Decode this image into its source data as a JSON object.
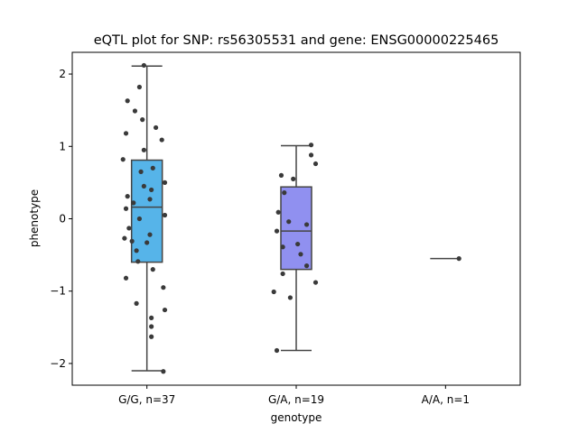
{
  "chart_data": {
    "type": "box",
    "title": "eQTL plot for SNP: rs56305531 and gene: ENSG00000225465",
    "xlabel": "genotype",
    "ylabel": "phenotype",
    "ylim": [
      -2.3,
      2.3
    ],
    "yticks": [
      -2,
      -1,
      0,
      1,
      2
    ],
    "ytick_labels": [
      "−2",
      "−1",
      "0",
      "1",
      "2"
    ],
    "grid": false,
    "legend": "none",
    "categories": [
      "G/G, n=37",
      "G/A, n=19",
      "A/A, n=1"
    ],
    "boxes": [
      {
        "category": "G/G, n=37",
        "color": "#56b4e9",
        "q1": -0.6,
        "median": 0.16,
        "q3": 0.81,
        "whisker_low": -2.1,
        "whisker_high": 2.11,
        "points": [
          {
            "dx": -0.02,
            "y": 2.12
          },
          {
            "dx": -0.05,
            "y": 1.82
          },
          {
            "dx": -0.13,
            "y": 1.63
          },
          {
            "dx": -0.08,
            "y": 1.49
          },
          {
            "dx": -0.03,
            "y": 1.37
          },
          {
            "dx": 0.06,
            "y": 1.26
          },
          {
            "dx": -0.14,
            "y": 1.18
          },
          {
            "dx": 0.1,
            "y": 1.09
          },
          {
            "dx": -0.02,
            "y": 0.95
          },
          {
            "dx": -0.16,
            "y": 0.82
          },
          {
            "dx": -0.04,
            "y": 0.65
          },
          {
            "dx": 0.04,
            "y": 0.7
          },
          {
            "dx": 0.12,
            "y": 0.5
          },
          {
            "dx": -0.02,
            "y": 0.45
          },
          {
            "dx": 0.03,
            "y": 0.4
          },
          {
            "dx": -0.13,
            "y": 0.31
          },
          {
            "dx": 0.02,
            "y": 0.27
          },
          {
            "dx": -0.09,
            "y": 0.22
          },
          {
            "dx": -0.14,
            "y": 0.14
          },
          {
            "dx": 0.12,
            "y": 0.05
          },
          {
            "dx": -0.05,
            "y": 0.0
          },
          {
            "dx": -0.12,
            "y": -0.13
          },
          {
            "dx": 0.02,
            "y": -0.22
          },
          {
            "dx": -0.15,
            "y": -0.27
          },
          {
            "dx": -0.1,
            "y": -0.31
          },
          {
            "dx": -0.07,
            "y": -0.44
          },
          {
            "dx": -0.06,
            "y": -0.59
          },
          {
            "dx": 0.04,
            "y": -0.7
          },
          {
            "dx": -0.14,
            "y": -0.82
          },
          {
            "dx": 0.11,
            "y": -0.95
          },
          {
            "dx": -0.07,
            "y": -1.17
          },
          {
            "dx": 0.12,
            "y": -1.26
          },
          {
            "dx": 0.03,
            "y": -1.37
          },
          {
            "dx": 0.03,
            "y": -1.49
          },
          {
            "dx": 0.03,
            "y": -1.63
          },
          {
            "dx": 0.11,
            "y": -2.11
          },
          {
            "dx": 0.0,
            "y": -0.33
          }
        ]
      },
      {
        "category": "G/A, n=19",
        "color": "#9090f0",
        "q1": -0.7,
        "median": -0.17,
        "q3": 0.44,
        "whisker_low": -1.82,
        "whisker_high": 1.01,
        "points": [
          {
            "dx": 0.1,
            "y": 1.02
          },
          {
            "dx": 0.1,
            "y": 0.88
          },
          {
            "dx": 0.13,
            "y": 0.76
          },
          {
            "dx": -0.1,
            "y": 0.6
          },
          {
            "dx": -0.02,
            "y": 0.55
          },
          {
            "dx": -0.08,
            "y": 0.36
          },
          {
            "dx": -0.12,
            "y": 0.09
          },
          {
            "dx": -0.05,
            "y": -0.04
          },
          {
            "dx": 0.07,
            "y": -0.08
          },
          {
            "dx": -0.13,
            "y": -0.17
          },
          {
            "dx": 0.01,
            "y": -0.35
          },
          {
            "dx": -0.09,
            "y": -0.39
          },
          {
            "dx": 0.03,
            "y": -0.49
          },
          {
            "dx": 0.07,
            "y": -0.65
          },
          {
            "dx": -0.09,
            "y": -0.76
          },
          {
            "dx": 0.13,
            "y": -0.88
          },
          {
            "dx": -0.15,
            "y": -1.01
          },
          {
            "dx": -0.04,
            "y": -1.09
          },
          {
            "dx": -0.13,
            "y": -1.82
          }
        ]
      },
      {
        "category": "A/A, n=1",
        "color": "#c090e8",
        "q1": -0.55,
        "median": -0.55,
        "q3": -0.55,
        "whisker_low": -0.55,
        "whisker_high": -0.55,
        "points": [
          {
            "dx": 0.09,
            "y": -0.55
          }
        ]
      }
    ]
  }
}
